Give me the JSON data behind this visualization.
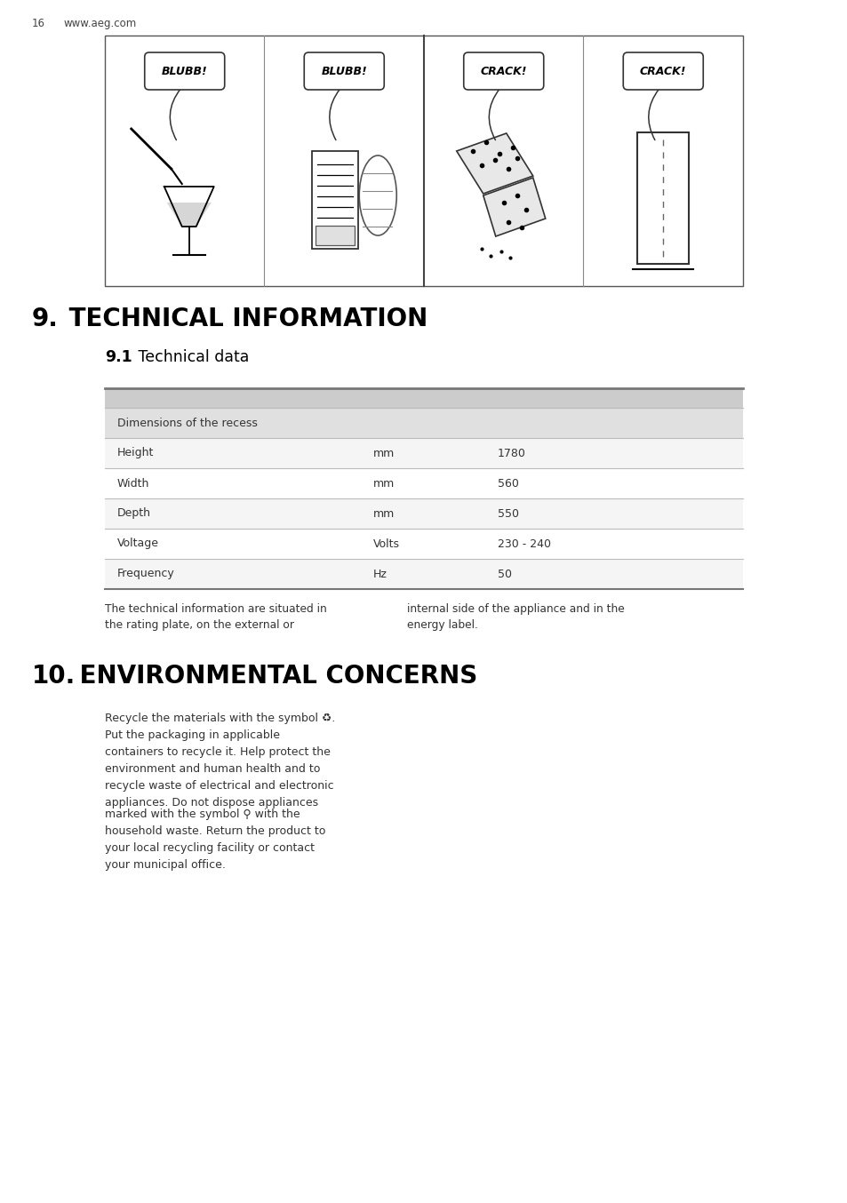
{
  "page_number": "16",
  "website": "www.aeg.com",
  "section_9_number": "9.",
  "section_9_text": " TECHNICAL INFORMATION",
  "section_9_1_number": "9.1",
  "section_9_1_text": " Technical data",
  "table_rows": [
    {
      "label": "Dimensions of the recess",
      "unit": "",
      "value": "",
      "bg": "#e0e0e0"
    },
    {
      "label": "Height",
      "unit": "mm",
      "value": "1780",
      "bg": "#f5f5f5"
    },
    {
      "label": "Width",
      "unit": "mm",
      "value": "560",
      "bg": "#ffffff"
    },
    {
      "label": "Depth",
      "unit": "mm",
      "value": "550",
      "bg": "#f5f5f5"
    },
    {
      "label": "Voltage",
      "unit": "Volts",
      "value": "230 - 240",
      "bg": "#ffffff"
    },
    {
      "label": "Frequency",
      "unit": "Hz",
      "value": "50",
      "bg": "#f5f5f5"
    }
  ],
  "table_note_left": "The technical information are situated in\nthe rating plate, on the external or",
  "table_note_right": "internal side of the appliance and in the\nenergy label.",
  "section_10_number": "10.",
  "section_10_text": " ENVIRONMENTAL CONCERNS",
  "env_text_1": "Recycle the materials with the symbol ♻.\nPut the packaging in applicable\ncontainers to recycle it. Help protect the\nenvironment and human health and to\nrecycle waste of electrical and electronic\nappliances. Do not dispose appliances",
  "env_text_2": "marked with the symbol ⚲ with the\nhousehold waste. Return the product to\nyour local recycling facility or contact\nyour municipal office.",
  "bubble_texts": [
    "BLUBB!",
    "BLUBB!",
    "CRACK!",
    "CRACK!"
  ],
  "bg_color": "#ffffff"
}
